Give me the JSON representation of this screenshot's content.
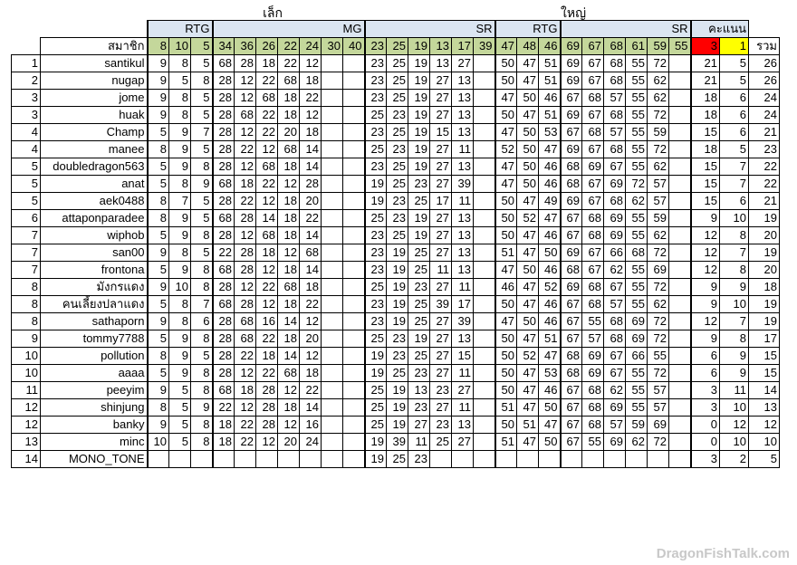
{
  "top_labels": {
    "small": "เล็ก",
    "large": "ใหญ่"
  },
  "group_headers": [
    "RTG",
    "MG",
    "SR",
    "RTG",
    "SR",
    "คะแนน"
  ],
  "member_label": "สมาชิก",
  "total_label": "รวม",
  "header_values": [
    "8",
    "10",
    "5",
    "34",
    "36",
    "26",
    "22",
    "24",
    "30",
    "40",
    "23",
    "25",
    "19",
    "13",
    "17",
    "39",
    "47",
    "48",
    "46",
    "69",
    "67",
    "68",
    "61",
    "59",
    "55",
    "3",
    "1"
  ],
  "rows": [
    {
      "idx": "1",
      "name": "santikul",
      "cells": [
        "9",
        "8",
        "5",
        "68",
        "28",
        "18",
        "22",
        "12",
        "",
        "",
        "23",
        "25",
        "19",
        "13",
        "27",
        "",
        "50",
        "47",
        "51",
        "69",
        "67",
        "68",
        "55",
        "72",
        "",
        "21",
        "5"
      ],
      "total": "26"
    },
    {
      "idx": "2",
      "name": "nugap",
      "cells": [
        "9",
        "5",
        "8",
        "28",
        "12",
        "22",
        "68",
        "18",
        "",
        "",
        "23",
        "25",
        "19",
        "27",
        "13",
        "",
        "50",
        "47",
        "51",
        "69",
        "67",
        "68",
        "55",
        "62",
        "",
        "21",
        "5"
      ],
      "total": "26"
    },
    {
      "idx": "3",
      "name": "jome",
      "cells": [
        "9",
        "8",
        "5",
        "28",
        "12",
        "68",
        "18",
        "22",
        "",
        "",
        "23",
        "25",
        "19",
        "27",
        "13",
        "",
        "47",
        "50",
        "46",
        "67",
        "68",
        "57",
        "55",
        "62",
        "",
        "18",
        "6"
      ],
      "total": "24"
    },
    {
      "idx": "3",
      "name": "huak",
      "cells": [
        "9",
        "8",
        "5",
        "28",
        "68",
        "22",
        "18",
        "12",
        "",
        "",
        "25",
        "23",
        "19",
        "27",
        "13",
        "",
        "50",
        "47",
        "51",
        "69",
        "67",
        "68",
        "55",
        "72",
        "",
        "18",
        "6"
      ],
      "total": "24"
    },
    {
      "idx": "4",
      "name": "Champ",
      "cells": [
        "5",
        "9",
        "7",
        "28",
        "12",
        "22",
        "20",
        "18",
        "",
        "",
        "23",
        "25",
        "19",
        "15",
        "13",
        "",
        "47",
        "50",
        "53",
        "67",
        "68",
        "57",
        "55",
        "59",
        "",
        "15",
        "6"
      ],
      "total": "21"
    },
    {
      "idx": "4",
      "name": "manee",
      "cells": [
        "8",
        "9",
        "5",
        "28",
        "22",
        "12",
        "68",
        "14",
        "",
        "",
        "25",
        "23",
        "19",
        "27",
        "11",
        "",
        "52",
        "50",
        "47",
        "69",
        "67",
        "68",
        "55",
        "72",
        "",
        "18",
        "5"
      ],
      "total": "23"
    },
    {
      "idx": "5",
      "name": "doubledragon563",
      "cells": [
        "5",
        "9",
        "8",
        "28",
        "12",
        "68",
        "18",
        "14",
        "",
        "",
        "23",
        "25",
        "19",
        "27",
        "13",
        "",
        "47",
        "50",
        "46",
        "68",
        "69",
        "67",
        "55",
        "62",
        "",
        "15",
        "7"
      ],
      "total": "22"
    },
    {
      "idx": "5",
      "name": "anat",
      "cells": [
        "5",
        "8",
        "9",
        "68",
        "18",
        "22",
        "12",
        "28",
        "",
        "",
        "19",
        "25",
        "23",
        "27",
        "39",
        "",
        "47",
        "50",
        "46",
        "68",
        "67",
        "69",
        "72",
        "57",
        "",
        "15",
        "7"
      ],
      "total": "22"
    },
    {
      "idx": "5",
      "name": "aek0488",
      "cells": [
        "8",
        "7",
        "5",
        "28",
        "22",
        "12",
        "18",
        "20",
        "",
        "",
        "19",
        "23",
        "25",
        "17",
        "11",
        "",
        "50",
        "47",
        "49",
        "69",
        "67",
        "68",
        "62",
        "57",
        "",
        "15",
        "6"
      ],
      "total": "21"
    },
    {
      "idx": "6",
      "name": "attaponparadee",
      "cells": [
        "8",
        "9",
        "5",
        "68",
        "28",
        "14",
        "18",
        "22",
        "",
        "",
        "25",
        "23",
        "19",
        "27",
        "13",
        "",
        "50",
        "52",
        "47",
        "67",
        "68",
        "69",
        "55",
        "59",
        "",
        "9",
        "10"
      ],
      "total": "19"
    },
    {
      "idx": "7",
      "name": "wiphob",
      "cells": [
        "5",
        "9",
        "8",
        "28",
        "12",
        "68",
        "18",
        "14",
        "",
        "",
        "23",
        "25",
        "19",
        "27",
        "13",
        "",
        "50",
        "47",
        "46",
        "67",
        "68",
        "69",
        "55",
        "62",
        "",
        "12",
        "8"
      ],
      "total": "20"
    },
    {
      "idx": "7",
      "name": "san00",
      "cells": [
        "9",
        "8",
        "5",
        "22",
        "28",
        "18",
        "12",
        "68",
        "",
        "",
        "23",
        "19",
        "25",
        "27",
        "13",
        "",
        "51",
        "47",
        "50",
        "69",
        "67",
        "66",
        "68",
        "72",
        "",
        "12",
        "7"
      ],
      "total": "19"
    },
    {
      "idx": "7",
      "name": "frontona",
      "cells": [
        "5",
        "9",
        "8",
        "68",
        "28",
        "12",
        "18",
        "14",
        "",
        "",
        "23",
        "19",
        "25",
        "11",
        "13",
        "",
        "47",
        "50",
        "46",
        "68",
        "67",
        "62",
        "55",
        "69",
        "",
        "12",
        "8"
      ],
      "total": "20"
    },
    {
      "idx": "8",
      "name": "มังกรแดง",
      "cells": [
        "9",
        "10",
        "8",
        "28",
        "12",
        "22",
        "68",
        "18",
        "",
        "",
        "25",
        "19",
        "23",
        "27",
        "11",
        "",
        "46",
        "47",
        "52",
        "69",
        "68",
        "67",
        "55",
        "72",
        "",
        "9",
        "9"
      ],
      "total": "18"
    },
    {
      "idx": "8",
      "name": "คนเลี้ยงปลาแดง",
      "cells": [
        "5",
        "8",
        "7",
        "68",
        "28",
        "12",
        "18",
        "22",
        "",
        "",
        "23",
        "19",
        "25",
        "39",
        "17",
        "",
        "50",
        "47",
        "46",
        "67",
        "68",
        "57",
        "55",
        "62",
        "",
        "9",
        "10"
      ],
      "total": "19"
    },
    {
      "idx": "8",
      "name": "sathaporn",
      "cells": [
        "9",
        "8",
        "6",
        "28",
        "68",
        "16",
        "14",
        "12",
        "",
        "",
        "23",
        "19",
        "25",
        "27",
        "39",
        "",
        "47",
        "50",
        "46",
        "67",
        "55",
        "68",
        "69",
        "72",
        "",
        "12",
        "7"
      ],
      "total": "19"
    },
    {
      "idx": "9",
      "name": "tommy7788",
      "cells": [
        "5",
        "9",
        "8",
        "28",
        "68",
        "22",
        "18",
        "20",
        "",
        "",
        "25",
        "23",
        "19",
        "27",
        "13",
        "",
        "50",
        "47",
        "51",
        "67",
        "57",
        "68",
        "69",
        "72",
        "",
        "9",
        "8"
      ],
      "total": "17"
    },
    {
      "idx": "10",
      "name": "pollution",
      "cells": [
        "8",
        "9",
        "5",
        "28",
        "22",
        "18",
        "14",
        "12",
        "",
        "",
        "19",
        "23",
        "25",
        "27",
        "15",
        "",
        "50",
        "52",
        "47",
        "68",
        "69",
        "67",
        "66",
        "55",
        "",
        "6",
        "9"
      ],
      "total": "15"
    },
    {
      "idx": "10",
      "name": "aaaa",
      "cells": [
        "5",
        "9",
        "8",
        "28",
        "12",
        "22",
        "68",
        "18",
        "",
        "",
        "19",
        "25",
        "23",
        "27",
        "11",
        "",
        "50",
        "47",
        "53",
        "68",
        "69",
        "67",
        "55",
        "72",
        "",
        "6",
        "9"
      ],
      "total": "15"
    },
    {
      "idx": "11",
      "name": "peeyim",
      "cells": [
        "9",
        "5",
        "8",
        "68",
        "18",
        "28",
        "12",
        "22",
        "",
        "",
        "25",
        "19",
        "13",
        "23",
        "27",
        "",
        "50",
        "47",
        "46",
        "67",
        "68",
        "62",
        "55",
        "57",
        "",
        "3",
        "11"
      ],
      "total": "14"
    },
    {
      "idx": "12",
      "name": "shinjung",
      "cells": [
        "8",
        "5",
        "9",
        "22",
        "12",
        "28",
        "18",
        "14",
        "",
        "",
        "25",
        "19",
        "23",
        "27",
        "11",
        "",
        "51",
        "47",
        "50",
        "67",
        "68",
        "69",
        "55",
        "57",
        "",
        "3",
        "10"
      ],
      "total": "13"
    },
    {
      "idx": "12",
      "name": "banky",
      "cells": [
        "9",
        "5",
        "8",
        "18",
        "22",
        "28",
        "12",
        "16",
        "",
        "",
        "25",
        "19",
        "27",
        "23",
        "13",
        "",
        "50",
        "51",
        "47",
        "67",
        "68",
        "57",
        "59",
        "69",
        "",
        "0",
        "12"
      ],
      "total": "12"
    },
    {
      "idx": "13",
      "name": "minc",
      "cells": [
        "10",
        "5",
        "8",
        "18",
        "22",
        "12",
        "20",
        "24",
        "",
        "",
        "19",
        "39",
        "11",
        "25",
        "27",
        "",
        "51",
        "47",
        "50",
        "67",
        "55",
        "69",
        "62",
        "72",
        "",
        "0",
        "10"
      ],
      "total": "10"
    },
    {
      "idx": "14",
      "name": "MONO_TONE",
      "cells": [
        "",
        "",
        "",
        "",
        "",
        "",
        "",
        "",
        "",
        "",
        "19",
        "25",
        "23",
        "",
        "",
        "",
        "",
        "",
        "",
        "",
        "",
        "",
        "",
        "",
        "",
        "3",
        "2"
      ],
      "total": "5"
    }
  ],
  "watermark": "DragonFishTalk.com"
}
